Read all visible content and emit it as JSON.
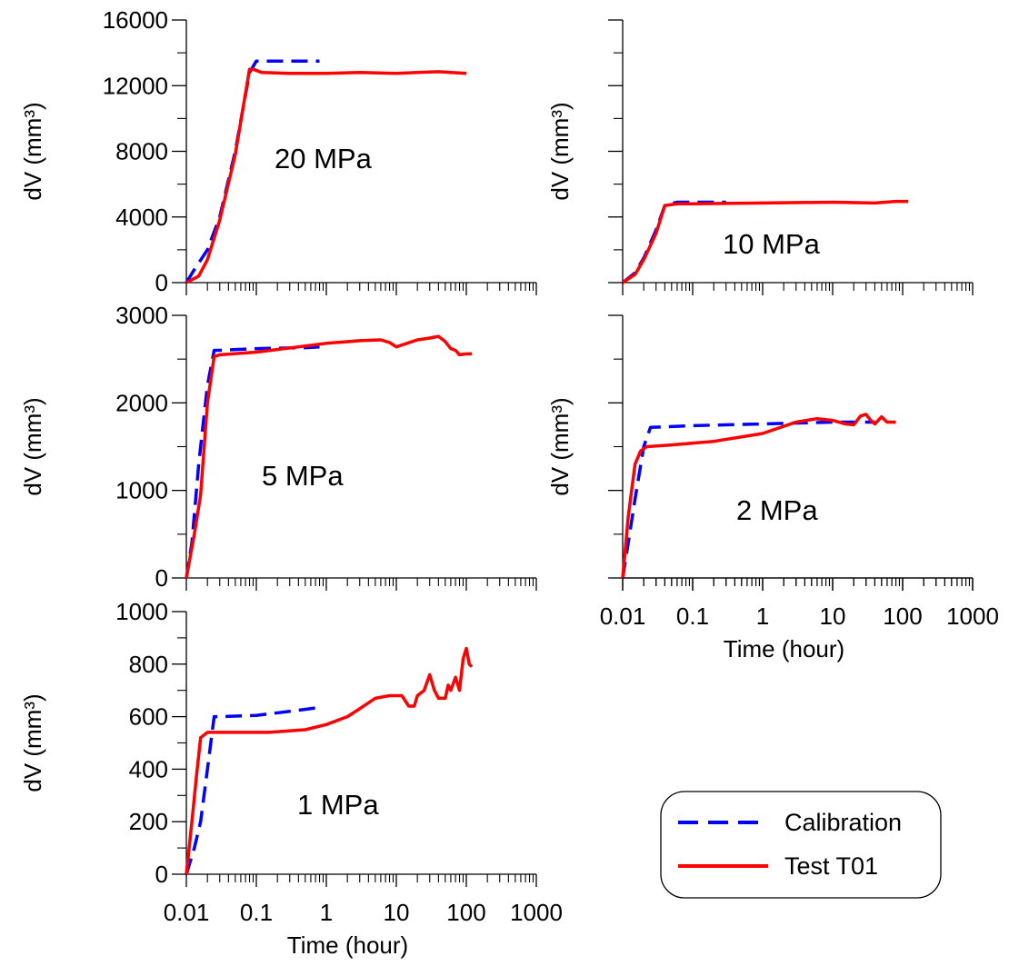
{
  "chart_data": [
    {
      "type": "line",
      "label": "20 MPa",
      "ylabel": "dV (mm³)",
      "xlabel": "",
      "xscale": "log",
      "xlim": [
        0.01,
        1000
      ],
      "ylim": [
        0,
        16000
      ],
      "yticks": [
        "0",
        "4000",
        "8000",
        "12000",
        "16000"
      ],
      "xticks": [],
      "series": [
        {
          "name": "Calibration",
          "x": [
            0.01,
            0.013,
            0.02,
            0.03,
            0.05,
            0.08,
            0.1,
            0.15,
            0.3,
            0.8
          ],
          "y": [
            0,
            800,
            2000,
            4000,
            8000,
            12800,
            13500,
            13500,
            13500,
            13500
          ]
        },
        {
          "name": "Test T01",
          "x": [
            0.01,
            0.015,
            0.02,
            0.03,
            0.05,
            0.08,
            0.09,
            0.12,
            0.3,
            1,
            3,
            10,
            20,
            40,
            60,
            100
          ],
          "y": [
            0,
            400,
            1400,
            3800,
            7800,
            13000,
            13000,
            12800,
            12750,
            12750,
            12800,
            12750,
            12800,
            12850,
            12800,
            12750
          ]
        }
      ]
    },
    {
      "type": "line",
      "label": "10 MPa",
      "ylabel": "dV (mm³)",
      "xlabel": "",
      "xscale": "log",
      "xlim": [
        0.01,
        1000
      ],
      "ylim": [
        0,
        16000
      ],
      "yticks": [],
      "xticks": [],
      "series": [
        {
          "name": "Calibration",
          "x": [
            0.01,
            0.015,
            0.02,
            0.03,
            0.04,
            0.06,
            0.1,
            0.3
          ],
          "y": [
            0,
            600,
            1500,
            3200,
            4700,
            4900,
            4900,
            4900
          ]
        },
        {
          "name": "Test T01",
          "x": [
            0.01,
            0.015,
            0.02,
            0.03,
            0.04,
            0.06,
            0.1,
            1,
            10,
            40,
            80,
            120
          ],
          "y": [
            0,
            500,
            1400,
            3000,
            4700,
            4800,
            4800,
            4850,
            4900,
            4850,
            4950,
            4950
          ]
        }
      ]
    },
    {
      "type": "line",
      "label": "5 MPa",
      "ylabel": "dV (mm³)",
      "xlabel": "",
      "xscale": "log",
      "xlim": [
        0.01,
        1000
      ],
      "ylim": [
        0,
        3000
      ],
      "yticks": [
        "0",
        "1000",
        "2000",
        "3000"
      ],
      "xticks": [],
      "series": [
        {
          "name": "Calibration",
          "x": [
            0.01,
            0.012,
            0.015,
            0.02,
            0.025,
            0.03,
            0.1,
            0.5,
            0.8
          ],
          "y": [
            0,
            400,
            1300,
            2200,
            2600,
            2600,
            2620,
            2630,
            2640
          ]
        },
        {
          "name": "Test T01",
          "x": [
            0.01,
            0.013,
            0.016,
            0.02,
            0.025,
            0.03,
            0.1,
            1,
            3,
            6,
            8,
            10,
            20,
            30,
            40,
            50,
            60,
            70,
            80,
            100,
            120
          ],
          "y": [
            0,
            500,
            950,
            2000,
            2530,
            2550,
            2580,
            2680,
            2710,
            2720,
            2690,
            2640,
            2720,
            2740,
            2760,
            2700,
            2620,
            2600,
            2550,
            2560,
            2560
          ]
        }
      ]
    },
    {
      "type": "line",
      "label": "2 MPa",
      "ylabel": "dV (mm³)",
      "xlabel": "",
      "xscale": "log",
      "xlim": [
        0.01,
        1000
      ],
      "ylim": [
        0,
        3000
      ],
      "yticks": [],
      "xticks": [],
      "series": [
        {
          "name": "Calibration",
          "x": [
            0.01,
            0.012,
            0.015,
            0.02,
            0.025,
            0.1,
            1,
            10,
            40
          ],
          "y": [
            0,
            400,
            900,
            1500,
            1720,
            1740,
            1760,
            1780,
            1780
          ]
        },
        {
          "name": "Test T01",
          "x": [
            0.01,
            0.012,
            0.015,
            0.018,
            0.022,
            0.05,
            0.2,
            1,
            3,
            6,
            10,
            15,
            20,
            25,
            30,
            35,
            40,
            50,
            60,
            80
          ],
          "y": [
            0,
            700,
            1300,
            1450,
            1500,
            1520,
            1560,
            1650,
            1780,
            1820,
            1800,
            1760,
            1750,
            1850,
            1870,
            1800,
            1760,
            1840,
            1780,
            1780
          ]
        }
      ]
    },
    {
      "type": "line",
      "label": "1 MPa",
      "ylabel": "dV (mm³)",
      "xlabel": "Time (hour)",
      "xscale": "log",
      "xlim": [
        0.01,
        1000
      ],
      "ylim": [
        0,
        1000
      ],
      "yticks": [
        "0",
        "200",
        "400",
        "600",
        "800",
        "1000"
      ],
      "xticks": [
        "0.01",
        "0.1",
        "1",
        "10",
        "100",
        "1000"
      ],
      "series": [
        {
          "name": "Calibration",
          "x": [
            0.01,
            0.013,
            0.016,
            0.02,
            0.025,
            0.03,
            0.1,
            0.3,
            0.8
          ],
          "y": [
            0,
            100,
            200,
            400,
            600,
            600,
            605,
            620,
            635
          ]
        },
        {
          "name": "Test T01",
          "x": [
            0.01,
            0.012,
            0.014,
            0.016,
            0.02,
            0.05,
            0.15,
            0.5,
            1,
            2,
            3,
            5,
            8,
            12,
            15,
            18,
            20,
            25,
            30,
            35,
            40,
            50,
            55,
            60,
            70,
            80,
            90,
            100,
            110,
            120
          ],
          "y": [
            0,
            200,
            380,
            520,
            540,
            540,
            540,
            550,
            570,
            600,
            630,
            670,
            680,
            680,
            640,
            640,
            680,
            700,
            760,
            700,
            670,
            670,
            720,
            700,
            750,
            700,
            820,
            860,
            800,
            790
          ]
        }
      ]
    },
    {
      "type": "line",
      "label": "",
      "xlabel": "Time (hour)",
      "xticks": [
        "0.01",
        "0.1",
        "1",
        "10",
        "100",
        "1000"
      ]
    }
  ],
  "legend": {
    "items": [
      {
        "name": "Calibration",
        "color": "#0000ff",
        "style": "dashed"
      },
      {
        "name": "Test T01",
        "color": "#ff0000",
        "style": "solid"
      }
    ]
  },
  "colors": {
    "Calibration": "#0000ff",
    "Test T01": "#ff0000",
    "axis": "#000000"
  }
}
